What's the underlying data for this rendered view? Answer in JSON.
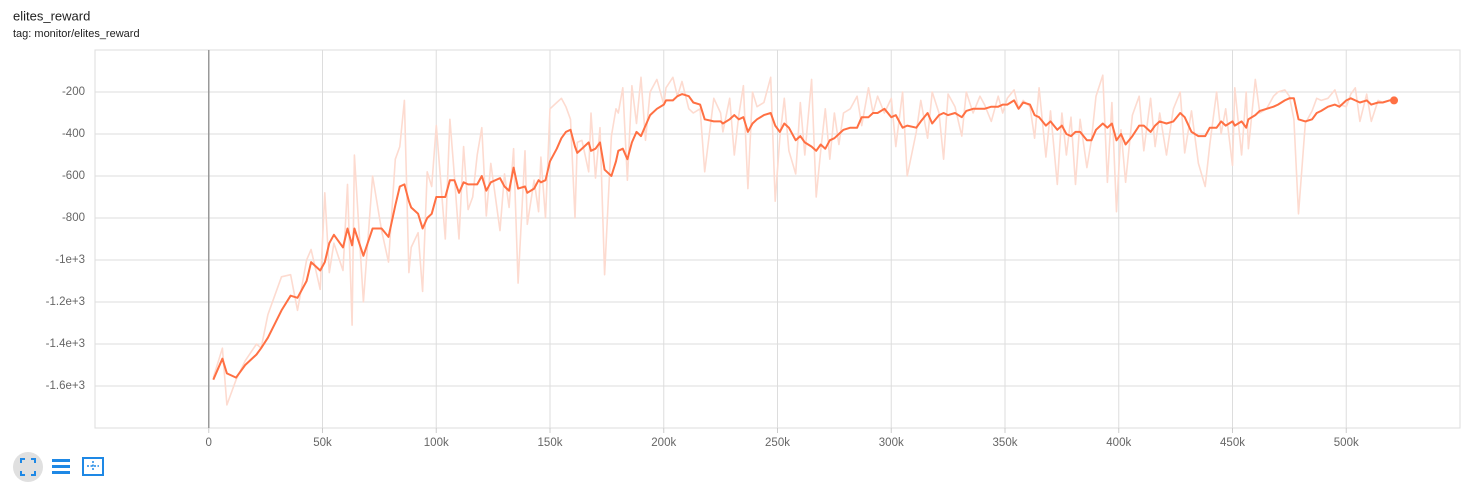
{
  "chart_data": {
    "type": "line",
    "title": "elites_reward",
    "subtitle": "tag: monitor/elites_reward",
    "x": [
      2000,
      6000,
      8000,
      12000,
      16000,
      21000,
      23000,
      26000,
      32000,
      36000,
      39000,
      43000,
      45000,
      49000,
      51000,
      53000,
      55000,
      59000,
      61000,
      63000,
      64000,
      68000,
      72000,
      76000,
      79000,
      82000,
      84000,
      86000,
      88000,
      89000,
      92000,
      94000,
      96000,
      98000,
      100000,
      104000,
      106000,
      108000,
      110000,
      112000,
      114000,
      116000,
      118000,
      120000,
      122000,
      124000,
      128000,
      130000,
      132000,
      134000,
      136000,
      139000,
      140000,
      143000,
      145000,
      146000,
      148000,
      150000,
      153000,
      155000,
      157000,
      159000,
      161000,
      162000,
      164000,
      167000,
      168000,
      170000,
      172000,
      174000,
      177000,
      179000,
      180000,
      182000,
      184000,
      186000,
      188000,
      190000,
      192000,
      194000,
      197000,
      200000,
      201000,
      204000,
      206000,
      208000,
      211000,
      213000,
      216000,
      218000,
      222000,
      225000,
      226000,
      229000,
      231000,
      233000,
      235000,
      237000,
      239000,
      241000,
      244000,
      247000,
      249000,
      251000,
      253000,
      255000,
      258000,
      260000,
      262000,
      265000,
      267000,
      269000,
      271000,
      273000,
      275000,
      277000,
      279000,
      282000,
      285000,
      287000,
      290000,
      292000,
      294000,
      297000,
      300000,
      302000,
      305000,
      307000,
      311000,
      313000,
      316000,
      318000,
      321000,
      323000,
      325000,
      328000,
      331000,
      333000,
      336000,
      339000,
      341000,
      344000,
      347000,
      349000,
      351000,
      354000,
      356000,
      358000,
      361000,
      363000,
      365000,
      368000,
      370000,
      373000,
      375000,
      377000,
      379000,
      381000,
      383000,
      386000,
      388000,
      390000,
      393000,
      395000,
      397000,
      399000,
      401000,
      403000,
      406000,
      409000,
      411000,
      414000,
      416000,
      418000,
      421000,
      424000,
      427000,
      429000,
      432000,
      435000,
      438000,
      440000,
      443000,
      445000,
      447000,
      450000,
      451000,
      454000,
      456000,
      457000,
      460000,
      462000,
      465000,
      468000,
      470000,
      473000,
      475000,
      477000,
      479000,
      482000,
      485000,
      487000,
      489000,
      492000,
      495000,
      497000,
      500000,
      502000,
      504000,
      506000,
      509000,
      511000,
      514000,
      516000,
      519000,
      521000
    ],
    "series": [
      {
        "color": "#fddbd0",
        "values": [
          -1560,
          -1420,
          -1690,
          -1570,
          -1480,
          -1400,
          -1420,
          -1260,
          -1080,
          -1070,
          -1240,
          -1000,
          -950,
          -1140,
          -680,
          -1060,
          -920,
          -1050,
          -640,
          -1310,
          -500,
          -1200,
          -600,
          -860,
          -1010,
          -520,
          -460,
          -240,
          -1060,
          -940,
          -870,
          -1150,
          -580,
          -650,
          -360,
          -900,
          -330,
          -600,
          -900,
          -460,
          -760,
          -700,
          -500,
          -370,
          -790,
          -540,
          -860,
          -590,
          -750,
          -470,
          -1110,
          -480,
          -830,
          -620,
          -770,
          -510,
          -800,
          -280,
          -250,
          -230,
          -270,
          -330,
          -800,
          -440,
          -430,
          -580,
          -300,
          -610,
          -370,
          -1070,
          -410,
          -280,
          -300,
          -180,
          -620,
          -170,
          -350,
          -130,
          -430,
          -200,
          -140,
          -260,
          -180,
          -130,
          -220,
          -150,
          -280,
          -300,
          -280,
          -580,
          -230,
          -300,
          -390,
          -230,
          -500,
          -310,
          -170,
          -660,
          -200,
          -270,
          -250,
          -130,
          -720,
          -420,
          -230,
          -480,
          -590,
          -250,
          -500,
          -140,
          -700,
          -480,
          -280,
          -520,
          -300,
          -450,
          -300,
          -280,
          -220,
          -360,
          -180,
          -300,
          -220,
          -300,
          -230,
          -460,
          -200,
          -600,
          -390,
          -240,
          -420,
          -200,
          -300,
          -520,
          -210,
          -270,
          -410,
          -200,
          -300,
          -220,
          -260,
          -340,
          -220,
          -300,
          -230,
          -190,
          -280,
          -240,
          -270,
          -420,
          -180,
          -510,
          -290,
          -640,
          -300,
          -500,
          -320,
          -640,
          -330,
          -560,
          -430,
          -220,
          -120,
          -630,
          -250,
          -770,
          -380,
          -630,
          -310,
          -220,
          -480,
          -230,
          -460,
          -300,
          -500,
          -280,
          -200,
          -490,
          -290,
          -540,
          -650,
          -450,
          -200,
          -400,
          -280,
          -550,
          -180,
          -500,
          -200,
          -470,
          -140,
          -300,
          -280,
          -220,
          -200,
          -190,
          -220,
          -330,
          -780,
          -350,
          -290,
          -230,
          -240,
          -230,
          -190,
          -260,
          -270,
          -210,
          -180,
          -340,
          -210,
          -340,
          -240,
          -250,
          -240,
          -240
        ]
      },
      {
        "color": "#ff7043",
        "values": [
          -1570,
          -1470,
          -1540,
          -1560,
          -1500,
          -1450,
          -1420,
          -1370,
          -1240,
          -1170,
          -1180,
          -1100,
          -1010,
          -1050,
          -1010,
          -920,
          -880,
          -940,
          -850,
          -930,
          -850,
          -980,
          -850,
          -850,
          -890,
          -740,
          -650,
          -640,
          -720,
          -750,
          -780,
          -850,
          -800,
          -780,
          -700,
          -700,
          -620,
          -620,
          -680,
          -630,
          -640,
          -640,
          -640,
          -600,
          -670,
          -630,
          -610,
          -650,
          -670,
          -560,
          -660,
          -650,
          -680,
          -660,
          -620,
          -630,
          -620,
          -530,
          -470,
          -420,
          -390,
          -380,
          -460,
          -490,
          -470,
          -440,
          -480,
          -470,
          -440,
          -570,
          -600,
          -530,
          -480,
          -470,
          -520,
          -440,
          -390,
          -410,
          -360,
          -310,
          -280,
          -260,
          -240,
          -240,
          -220,
          -210,
          -220,
          -250,
          -260,
          -330,
          -340,
          -340,
          -350,
          -330,
          -310,
          -330,
          -320,
          -390,
          -350,
          -330,
          -310,
          -300,
          -360,
          -390,
          -350,
          -370,
          -430,
          -410,
          -440,
          -460,
          -480,
          -450,
          -470,
          -430,
          -420,
          -400,
          -380,
          -370,
          -370,
          -320,
          -320,
          -300,
          -300,
          -280,
          -320,
          -310,
          -370,
          -360,
          -370,
          -340,
          -300,
          -350,
          -310,
          -300,
          -310,
          -300,
          -320,
          -290,
          -280,
          -280,
          -280,
          -270,
          -270,
          -260,
          -260,
          -240,
          -280,
          -250,
          -260,
          -310,
          -320,
          -360,
          -340,
          -380,
          -360,
          -400,
          -410,
          -390,
          -390,
          -430,
          -430,
          -380,
          -350,
          -370,
          -350,
          -430,
          -400,
          -450,
          -410,
          -360,
          -360,
          -390,
          -360,
          -340,
          -350,
          -340,
          -300,
          -320,
          -390,
          -410,
          -410,
          -370,
          -370,
          -340,
          -360,
          -340,
          -360,
          -340,
          -370,
          -330,
          -310,
          -290,
          -280,
          -270,
          -260,
          -240,
          -230,
          -230,
          -330,
          -340,
          -330,
          -300,
          -290,
          -270,
          -260,
          -270,
          -240,
          -230,
          -240,
          -250,
          -240,
          -260,
          -250,
          -250,
          -240,
          -240
        ]
      }
    ],
    "xlim": [
      -50000,
      550000
    ],
    "ylim": [
      -1800,
      0
    ],
    "xticks": [
      0,
      {
        "value": 50000,
        "label": "50k"
      },
      {
        "value": 100000,
        "label": "100k"
      },
      {
        "value": 150000,
        "label": "150k"
      },
      {
        "value": 200000,
        "label": "200k"
      },
      {
        "value": 250000,
        "label": "250k"
      },
      {
        "value": 300000,
        "label": "300k"
      },
      {
        "value": 350000,
        "label": "350k"
      },
      {
        "value": 400000,
        "label": "400k"
      },
      {
        "value": 450000,
        "label": "450k"
      },
      {
        "value": 500000,
        "label": "500k"
      }
    ],
    "yticks": [
      -200,
      -400,
      -600,
      -800,
      {
        "value": -1000,
        "label": "-1e+3"
      },
      {
        "value": -1200,
        "label": "-1.2e+3"
      },
      {
        "value": -1400,
        "label": "-1.4e+3"
      },
      {
        "value": -1600,
        "label": "-1.6e+3"
      }
    ],
    "grid": true
  }
}
